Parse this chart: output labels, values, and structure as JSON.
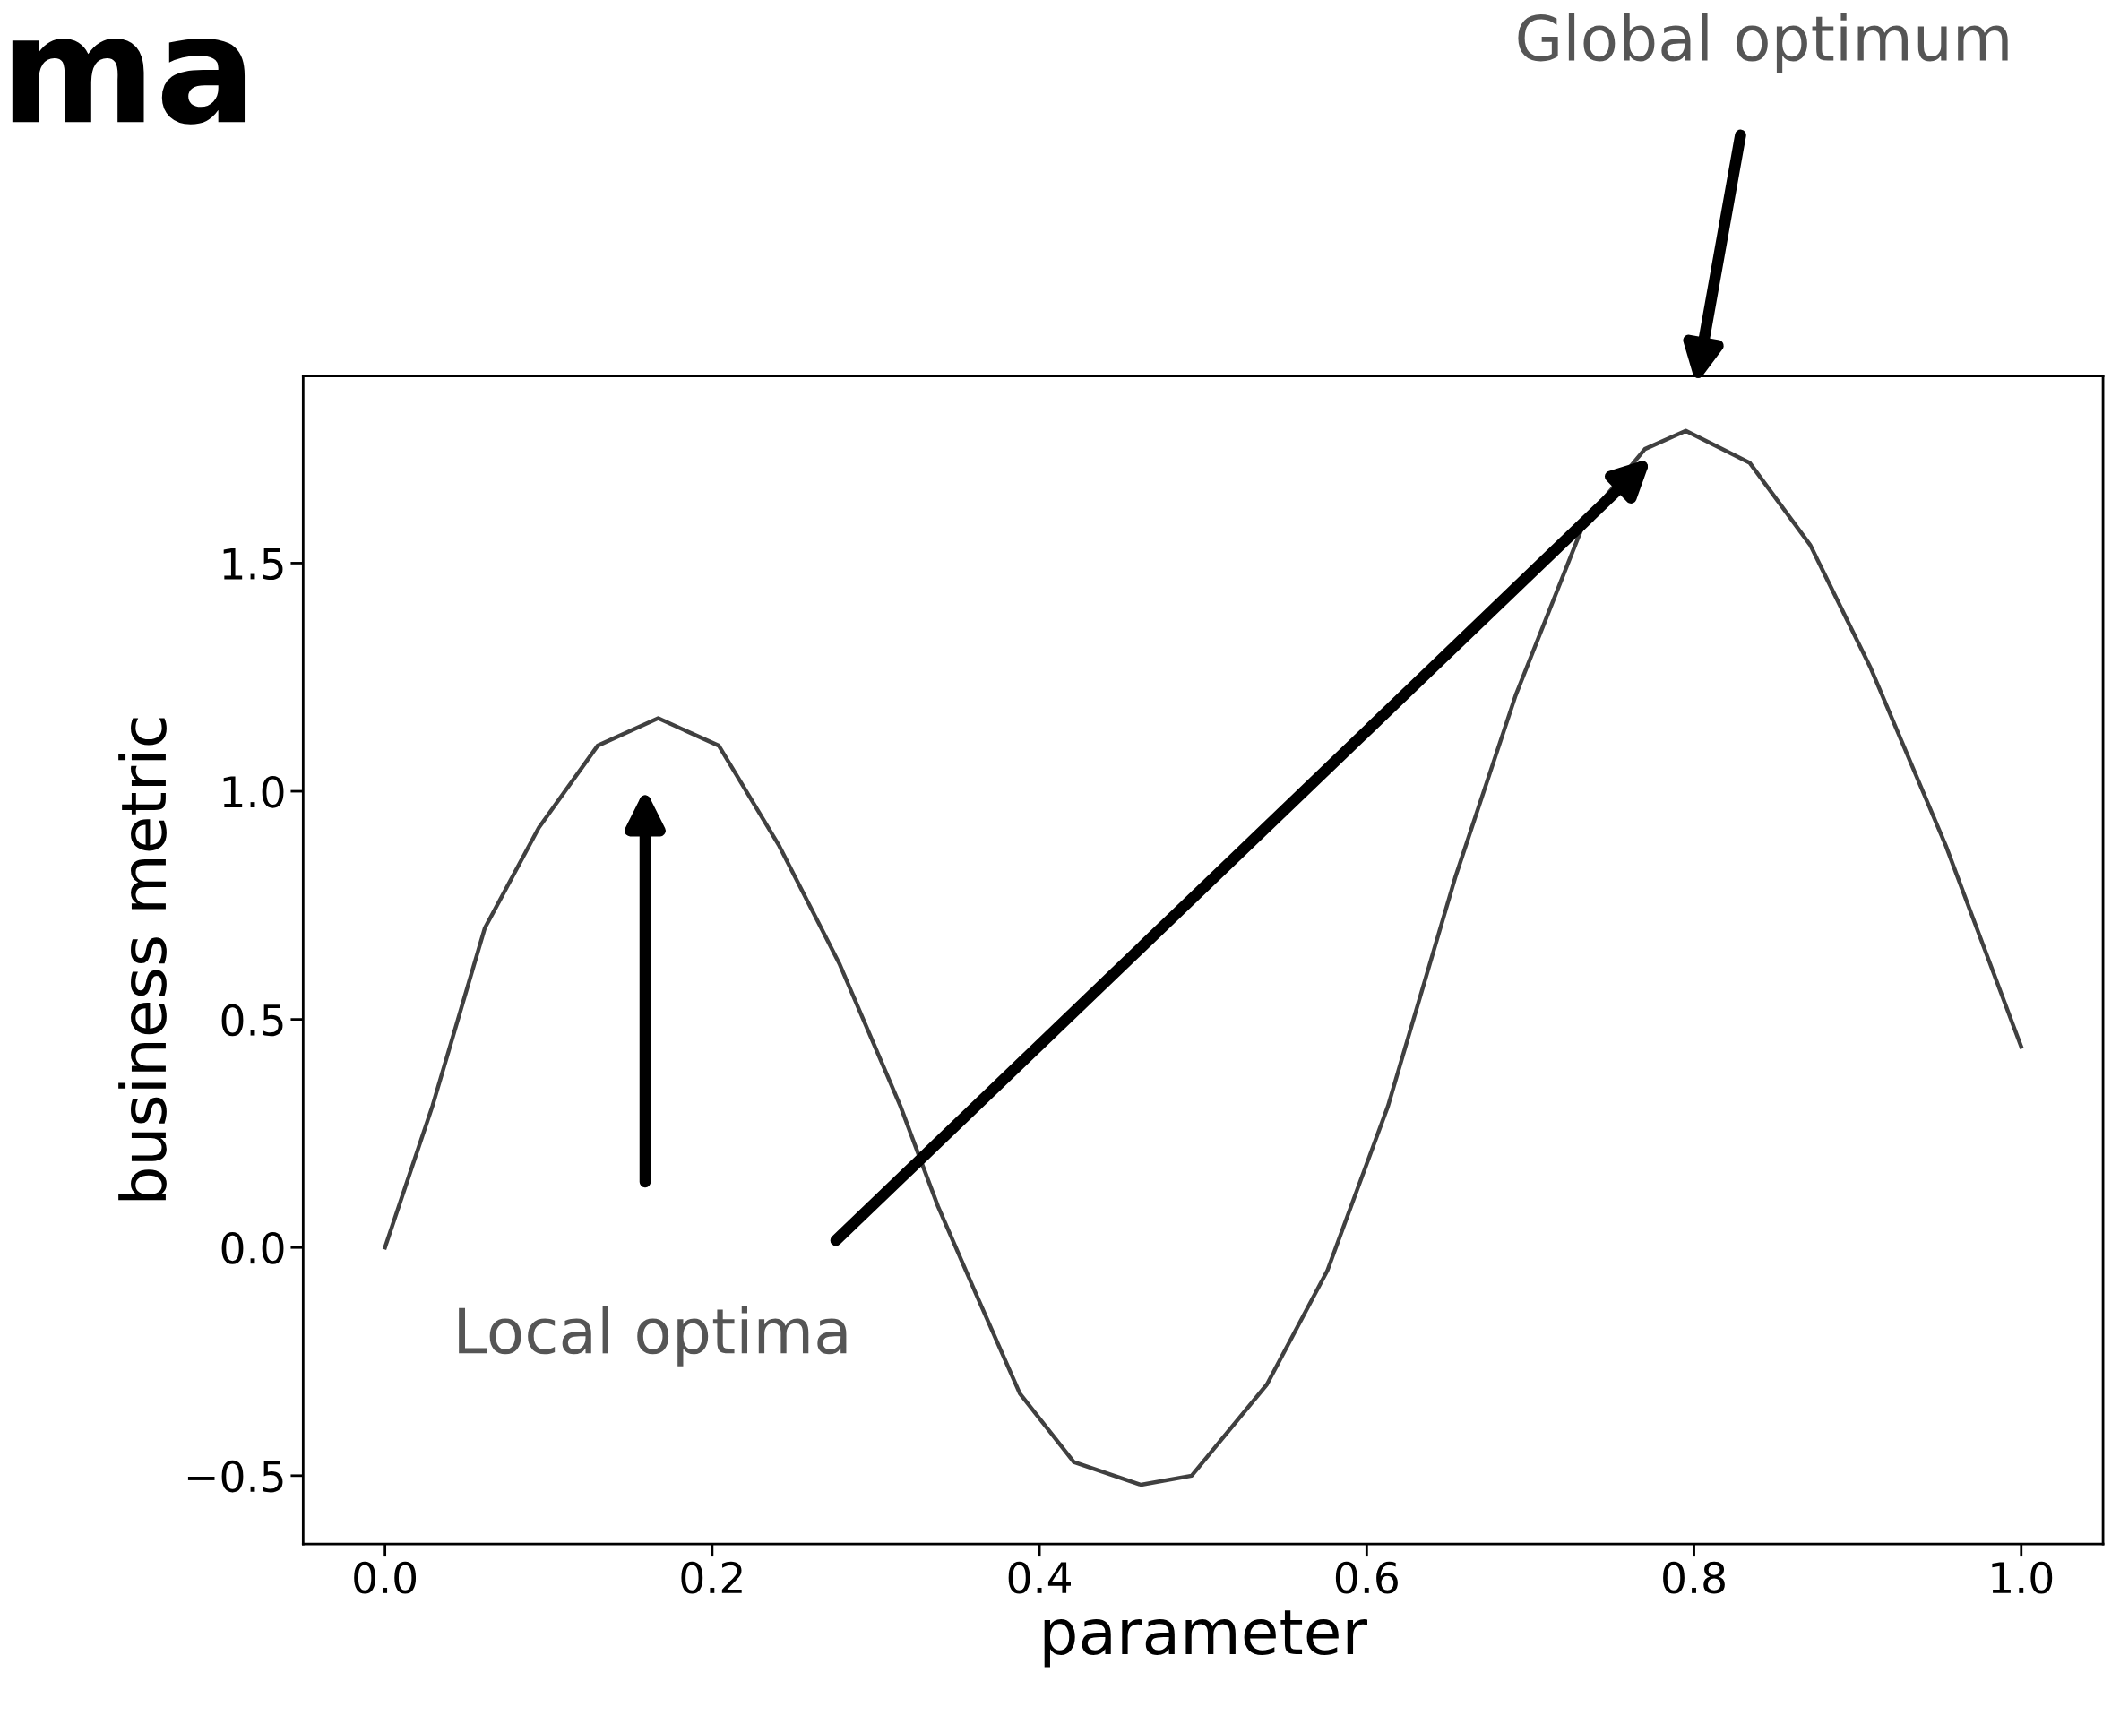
{
  "chart_data": {
    "type": "line",
    "title": "ma",
    "xlabel": "parameter",
    "ylabel": "business metric",
    "x": [
      0,
      0.029,
      0.061,
      0.094,
      0.13,
      0.167,
      0.204,
      0.241,
      0.278,
      0.315,
      0.338,
      0.361,
      0.388,
      0.421,
      0.462,
      0.493,
      0.539,
      0.576,
      0.613,
      0.654,
      0.691,
      0.733,
      0.77,
      0.795,
      0.834,
      0.871,
      0.908,
      0.954,
      1.0
    ],
    "series": [
      {
        "color": "#404040",
        "values": [
          0,
          0.31,
          0.7,
          0.92,
          1.1,
          1.16,
          1.1,
          0.88,
          0.62,
          0.31,
          0.09,
          -0.1,
          -0.32,
          -0.47,
          -0.52,
          -0.5,
          -0.3,
          -0.05,
          0.31,
          0.81,
          1.21,
          1.59,
          1.75,
          1.79,
          1.72,
          1.54,
          1.27,
          0.88,
          0.44
        ]
      }
    ],
    "xlim": [
      -0.05,
      1.05
    ],
    "ylim": [
      -0.65,
      1.91
    ],
    "xticks": [
      {
        "value": 0,
        "label": "0.0"
      },
      0.2,
      0.4,
      0.6,
      0.8,
      {
        "value": 1,
        "label": "1.0"
      }
    ],
    "yticks": [
      {
        "value": -0.5,
        "label": "−0.5"
      },
      {
        "value": 0,
        "label": "0.0"
      },
      0.5,
      {
        "value": 1,
        "label": "1.0"
      },
      1.5
    ],
    "annotations": [
      "Local optima",
      "Global optimum"
    ],
    "grid": false,
    "legend": false,
    "marker": "none",
    "line_style": "solid"
  }
}
